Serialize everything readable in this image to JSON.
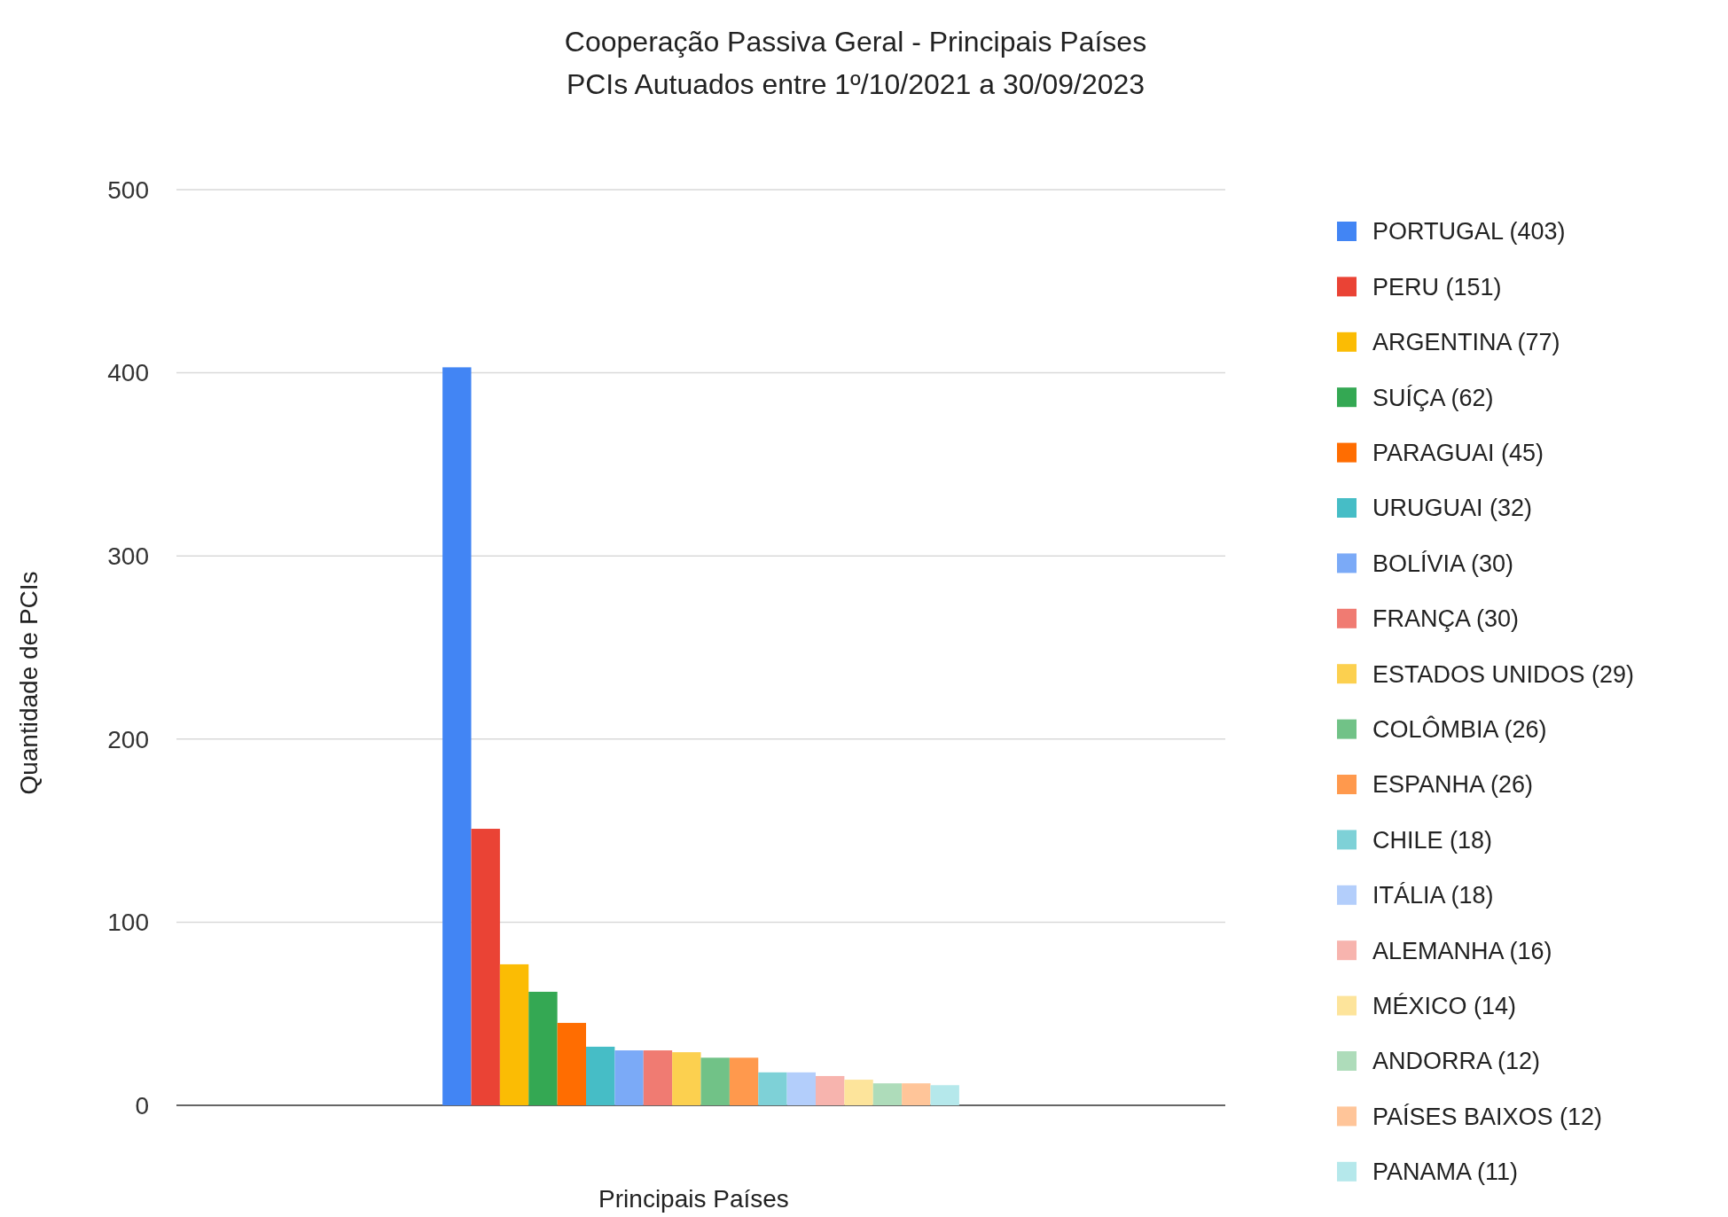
{
  "chart_data": {
    "type": "bar",
    "title": "Cooperação Passiva Geral - Principais Países",
    "subtitle": "PCIs Autuados entre 1º/10/2021 a 30/09/2023",
    "xlabel": "Principais Países",
    "ylabel": "Quantidade de PCIs",
    "categories": [
      null
    ],
    "ylim": [
      0,
      500
    ],
    "yticks": [
      0,
      100,
      200,
      300,
      400,
      500
    ],
    "grid": "y",
    "legend": "right",
    "series": [
      {
        "name": "PORTUGAL (403)",
        "color": "#4285f4",
        "values": [
          403
        ]
      },
      {
        "name": "PERU (151)",
        "color": "#ea4335",
        "values": [
          151
        ]
      },
      {
        "name": "ARGENTINA (77)",
        "color": "#fbbc04",
        "values": [
          77
        ]
      },
      {
        "name": "SUÍÇA (62)",
        "color": "#34a853",
        "values": [
          62
        ]
      },
      {
        "name": "PARAGUAI (45)",
        "color": "#ff6d01",
        "values": [
          45
        ]
      },
      {
        "name": "URUGUAI (32)",
        "color": "#46bdc6",
        "values": [
          32
        ]
      },
      {
        "name": "BOLÍVIA (30)",
        "color": "#7baaf7",
        "values": [
          30
        ]
      },
      {
        "name": "FRANÇA (30)",
        "color": "#f07b72",
        "values": [
          30
        ]
      },
      {
        "name": "ESTADOS UNIDOS (29)",
        "color": "#fcd04f",
        "values": [
          29
        ]
      },
      {
        "name": "COLÔMBIA (26)",
        "color": "#71c287",
        "values": [
          26
        ]
      },
      {
        "name": "ESPANHA (26)",
        "color": "#ff994d",
        "values": [
          26
        ]
      },
      {
        "name": "CHILE (18)",
        "color": "#7ed1d7",
        "values": [
          18
        ]
      },
      {
        "name": "ITÁLIA (18)",
        "color": "#b3cefb",
        "values": [
          18
        ]
      },
      {
        "name": "ALEMANHA (16)",
        "color": "#f7b4ae",
        "values": [
          16
        ]
      },
      {
        "name": "MÉXICO (14)",
        "color": "#fde49b",
        "values": [
          14
        ]
      },
      {
        "name": "ANDORRA (12)",
        "color": "#aedcba",
        "values": [
          12
        ]
      },
      {
        "name": "PAÍSES BAIXOS (12)",
        "color": "#ffc599",
        "values": [
          12
        ]
      },
      {
        "name": "PANAMA (11)",
        "color": "#b5e8eb",
        "values": [
          11
        ]
      }
    ]
  }
}
